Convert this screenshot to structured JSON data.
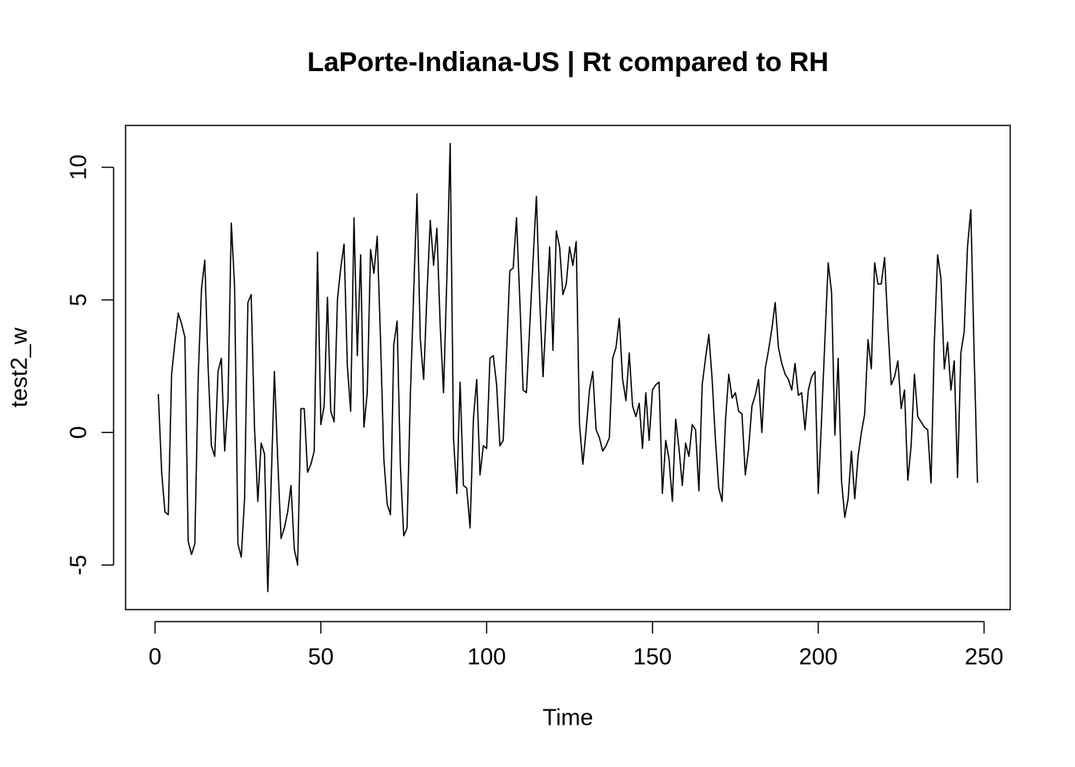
{
  "chart_data": {
    "type": "line",
    "title": "LaPorte-Indiana-US | Rt compared to RH",
    "xlabel": "Time",
    "ylabel": "test2_w",
    "color": "#000000",
    "x": [
      1,
      2,
      3,
      4,
      5,
      6,
      7,
      8,
      9,
      10,
      11,
      12,
      13,
      14,
      15,
      16,
      17,
      18,
      19,
      20,
      21,
      22,
      23,
      24,
      25,
      26,
      27,
      28,
      29,
      30,
      31,
      32,
      33,
      34,
      35,
      36,
      37,
      38,
      39,
      40,
      41,
      42,
      43,
      44,
      45,
      46,
      47,
      48,
      49,
      50,
      51,
      52,
      53,
      54,
      55,
      56,
      57,
      58,
      59,
      60,
      61,
      62,
      63,
      64,
      65,
      66,
      67,
      68,
      69,
      70,
      71,
      72,
      73,
      74,
      75,
      76,
      77,
      78,
      79,
      80,
      81,
      82,
      83,
      84,
      85,
      86,
      87,
      88,
      89,
      90,
      91,
      92,
      93,
      94,
      95,
      96,
      97,
      98,
      99,
      100,
      101,
      102,
      103,
      104,
      105,
      106,
      107,
      108,
      109,
      110,
      111,
      112,
      113,
      114,
      115,
      116,
      117,
      118,
      119,
      120,
      121,
      122,
      123,
      124,
      125,
      126,
      127,
      128,
      129,
      130,
      131,
      132,
      133,
      134,
      135,
      136,
      137,
      138,
      139,
      140,
      141,
      142,
      143,
      144,
      145,
      146,
      147,
      148,
      149,
      150,
      151,
      152,
      153,
      154,
      155,
      156,
      157,
      158,
      159,
      160,
      161,
      162,
      163,
      164,
      165,
      166,
      167,
      168,
      169,
      170,
      171,
      172,
      173,
      174,
      175,
      176,
      177,
      178,
      179,
      180,
      181,
      182,
      183,
      184,
      185,
      186,
      187,
      188,
      189,
      190,
      191,
      192,
      193,
      194,
      195,
      196,
      197,
      198,
      199,
      200,
      201,
      202,
      203,
      204,
      205,
      206,
      207,
      208,
      209,
      210,
      211,
      212,
      213,
      214,
      215,
      216,
      217,
      218,
      219,
      220,
      221,
      222,
      223,
      224,
      225,
      226,
      227,
      228,
      229,
      230,
      231,
      232,
      233,
      234,
      235,
      236,
      237,
      238,
      239,
      240,
      241,
      242,
      243,
      244,
      245,
      246,
      247,
      248
    ],
    "values": [
      1.45,
      -1.5,
      -3.0,
      -3.1,
      2.2,
      3.4,
      4.5,
      4.1,
      3.6,
      -4.1,
      -4.6,
      -4.2,
      2.0,
      5.4,
      6.5,
      2.5,
      -0.5,
      -0.9,
      2.3,
      2.8,
      -0.7,
      1.2,
      7.9,
      5.5,
      -4.2,
      -4.7,
      -2.5,
      4.9,
      5.2,
      0.2,
      -2.6,
      -0.4,
      -0.8,
      -6.0,
      -2.0,
      2.3,
      -1.0,
      -4.0,
      -3.6,
      -3.0,
      -2.0,
      -4.4,
      -5.0,
      0.9,
      0.9,
      -1.5,
      -1.2,
      -0.7,
      6.8,
      0.3,
      1.0,
      5.1,
      0.8,
      0.4,
      5.0,
      6.2,
      7.1,
      2.5,
      0.8,
      8.1,
      2.9,
      6.7,
      0.2,
      1.5,
      6.9,
      6.0,
      7.4,
      3.5,
      -1.0,
      -2.7,
      -3.1,
      3.3,
      4.2,
      -1.3,
      -3.9,
      -3.6,
      1.4,
      5.3,
      9.0,
      3.5,
      2.0,
      5.2,
      8.0,
      6.3,
      7.7,
      4.0,
      1.5,
      5.8,
      10.9,
      -0.2,
      -2.3,
      1.9,
      -2.0,
      -2.1,
      -3.6,
      0.5,
      2.0,
      -1.6,
      -0.5,
      -0.6,
      2.8,
      2.9,
      1.8,
      -0.5,
      -0.3,
      3.0,
      6.1,
      6.2,
      8.1,
      5.0,
      1.6,
      1.5,
      4.0,
      6.5,
      8.9,
      5.0,
      2.1,
      4.6,
      7.0,
      3.1,
      7.6,
      7.0,
      5.2,
      5.6,
      7.0,
      6.3,
      7.2,
      0.3,
      -1.2,
      0.1,
      1.6,
      2.3,
      0.1,
      -0.2,
      -0.7,
      -0.5,
      -0.2,
      2.8,
      3.2,
      4.3,
      2.0,
      1.2,
      3.0,
      1.0,
      0.6,
      1.1,
      -0.6,
      1.5,
      -0.3,
      1.6,
      1.8,
      1.9,
      -2.3,
      -0.3,
      -1.0,
      -2.6,
      0.5,
      -0.6,
      -2.0,
      -0.4,
      -0.9,
      0.3,
      0.1,
      -2.2,
      1.8,
      2.8,
      3.7,
      2.0,
      -0.3,
      -2.1,
      -2.6,
      0.4,
      2.2,
      1.3,
      1.5,
      0.8,
      0.7,
      -1.6,
      -0.6,
      1.0,
      1.4,
      2.0,
      0.0,
      2.4,
      3.1,
      3.9,
      4.9,
      3.2,
      2.6,
      2.2,
      2.0,
      1.6,
      2.6,
      1.4,
      1.5,
      0.1,
      1.6,
      2.1,
      2.3,
      -2.3,
      0.5,
      3.5,
      6.4,
      5.3,
      -0.1,
      2.8,
      -1.8,
      -3.2,
      -2.5,
      -0.7,
      -2.5,
      -0.9,
      0.0,
      0.7,
      3.5,
      2.4,
      6.4,
      5.6,
      5.6,
      6.6,
      4.0,
      1.8,
      2.1,
      2.7,
      0.9,
      1.6,
      -1.8,
      -0.5,
      2.2,
      0.6,
      0.4,
      0.2,
      0.1,
      -1.9,
      3.4,
      6.7,
      5.8,
      2.4,
      3.4,
      1.6,
      2.7,
      -1.7,
      3.0,
      3.8,
      7.0,
      8.4,
      3.0,
      -1.9
    ],
    "xlim": [
      -8.88,
      257.88
    ],
    "ylim": [
      -6.68,
      11.58
    ],
    "xticks": [
      0,
      50,
      100,
      150,
      200,
      250
    ],
    "yticks": [
      -5,
      0,
      5,
      10
    ]
  }
}
